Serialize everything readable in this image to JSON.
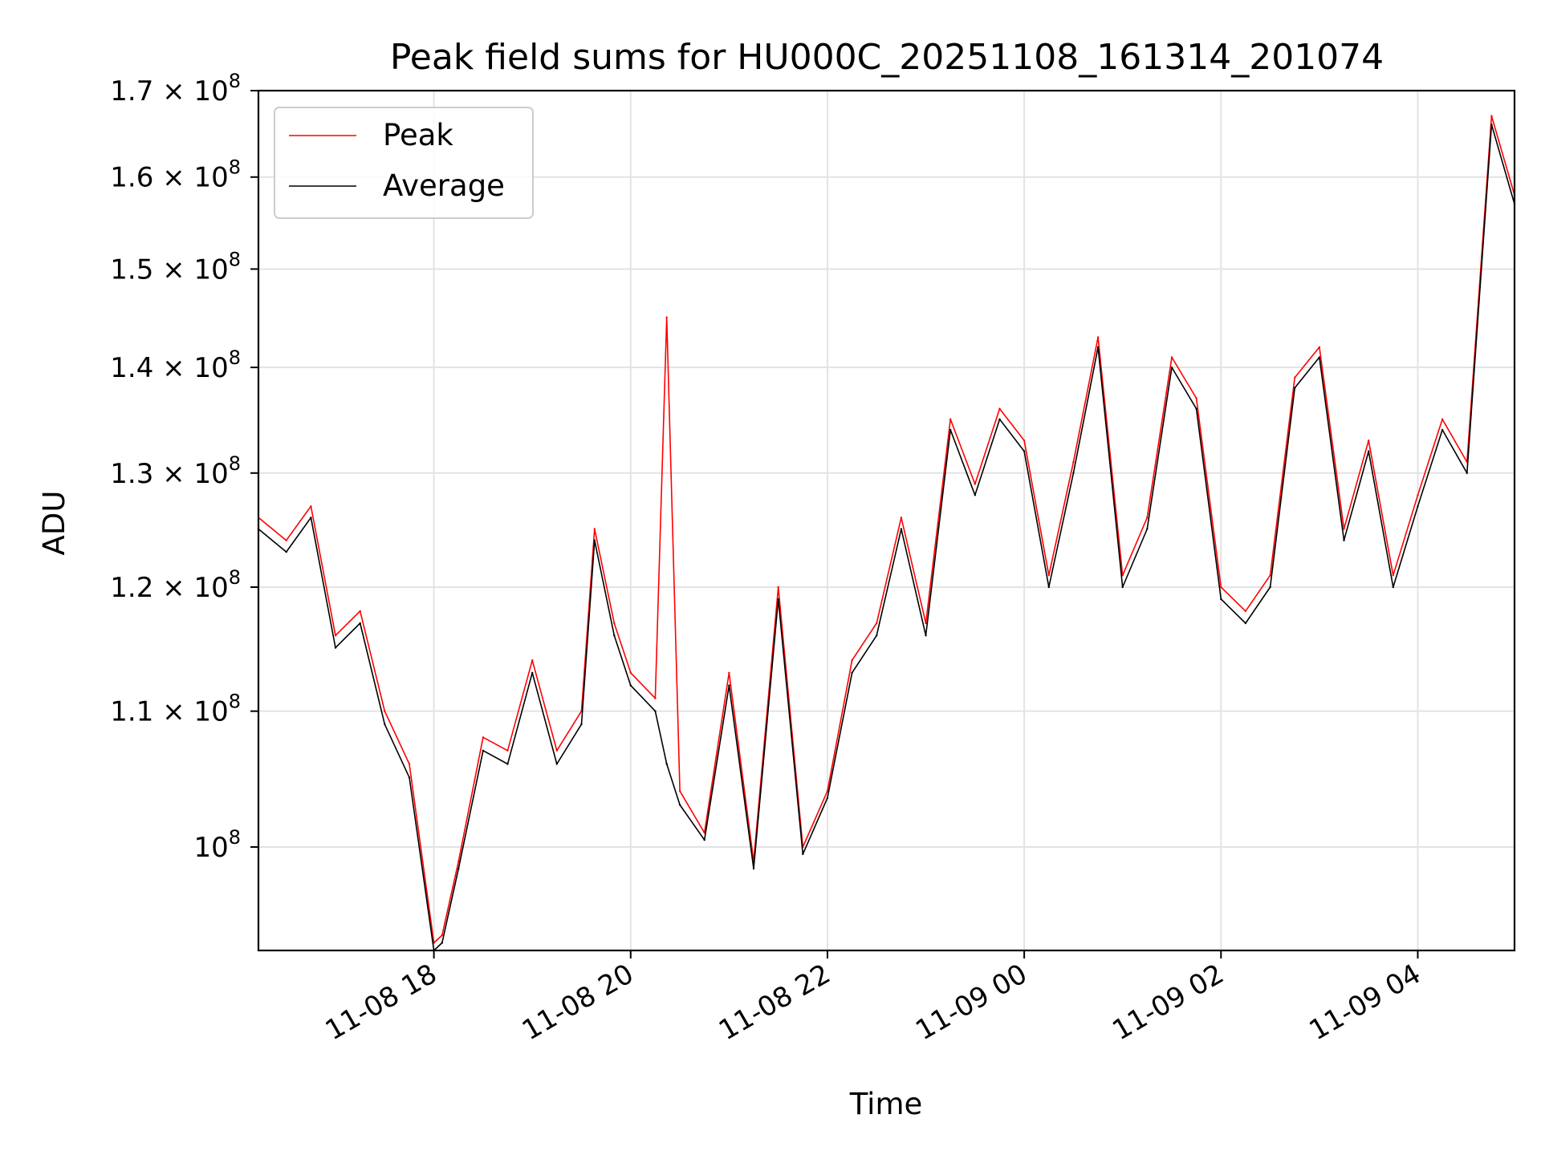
{
  "chart_data": {
    "type": "line",
    "title": "Peak field sums for HU000C_20251108_161314_201074",
    "xlabel": "Time",
    "ylabel": "ADU",
    "y_scale": "log",
    "grid": true,
    "legend_position": "top-left",
    "xlim": [
      "2025-11-08 16:13",
      "2025-11-09 04:59"
    ],
    "ylim": [
      93000000,
      170000000
    ],
    "x_tick_labels": [
      "11-08 18",
      "11-08 20",
      "11-08 22",
      "11-09 00",
      "11-09 02",
      "11-09 04"
    ],
    "x_ticks": [
      "2025-11-08 18:00",
      "2025-11-08 20:00",
      "2025-11-08 22:00",
      "2025-11-09 00:00",
      "2025-11-09 02:00",
      "2025-11-09 04:00"
    ],
    "y_ticks": [
      {
        "value": 100000000,
        "mantissa": "",
        "exponent": "8"
      },
      {
        "value": 110000000,
        "mantissa": "1.1",
        "exponent": "8"
      },
      {
        "value": 120000000,
        "mantissa": "1.2",
        "exponent": "8"
      },
      {
        "value": 130000000,
        "mantissa": "1.3",
        "exponent": "8"
      },
      {
        "value": 140000000,
        "mantissa": "1.4",
        "exponent": "8"
      },
      {
        "value": 150000000,
        "mantissa": "1.5",
        "exponent": "8"
      },
      {
        "value": 160000000,
        "mantissa": "1.6",
        "exponent": "8"
      },
      {
        "value": 170000000,
        "mantissa": "1.7",
        "exponent": "8"
      }
    ],
    "x": [
      "2025-11-08 16:13",
      "2025-11-08 16:30",
      "2025-11-08 16:45",
      "2025-11-08 17:00",
      "2025-11-08 17:15",
      "2025-11-08 17:30",
      "2025-11-08 17:45",
      "2025-11-08 18:00",
      "2025-11-08 18:05",
      "2025-11-08 18:15",
      "2025-11-08 18:30",
      "2025-11-08 18:45",
      "2025-11-08 19:00",
      "2025-11-08 19:15",
      "2025-11-08 19:30",
      "2025-11-08 19:38",
      "2025-11-08 19:50",
      "2025-11-08 20:00",
      "2025-11-08 20:15",
      "2025-11-08 20:22",
      "2025-11-08 20:30",
      "2025-11-08 20:45",
      "2025-11-08 21:00",
      "2025-11-08 21:15",
      "2025-11-08 21:30",
      "2025-11-08 21:45",
      "2025-11-08 22:00",
      "2025-11-08 22:15",
      "2025-11-08 22:30",
      "2025-11-08 22:45",
      "2025-11-08 23:00",
      "2025-11-08 23:15",
      "2025-11-08 23:30",
      "2025-11-08 23:45",
      "2025-11-09 00:00",
      "2025-11-09 00:15",
      "2025-11-09 00:30",
      "2025-11-09 00:45",
      "2025-11-09 01:00",
      "2025-11-09 01:15",
      "2025-11-09 01:30",
      "2025-11-09 01:45",
      "2025-11-09 02:00",
      "2025-11-09 02:15",
      "2025-11-09 02:30",
      "2025-11-09 02:45",
      "2025-11-09 03:00",
      "2025-11-09 03:15",
      "2025-11-09 03:30",
      "2025-11-09 03:45",
      "2025-11-09 04:00",
      "2025-11-09 04:15",
      "2025-11-09 04:30",
      "2025-11-09 04:45",
      "2025-11-09 04:59"
    ],
    "series": [
      {
        "name": "Peak",
        "color": "#ff0000",
        "values": [
          126000000,
          124000000,
          127000000,
          116000000,
          118000000,
          110000000,
          106000000,
          93500000,
          94000000,
          99000000,
          108000000,
          107000000,
          114000000,
          107000000,
          110000000,
          125000000,
          117000000,
          113000000,
          111000000,
          145000000,
          104000000,
          101000000,
          113000000,
          99000000,
          120000000,
          100000000,
          104000000,
          114000000,
          117000000,
          126000000,
          117000000,
          135000000,
          129000000,
          136000000,
          133000000,
          121000000,
          131000000,
          143000000,
          121000000,
          126000000,
          141000000,
          137000000,
          120000000,
          118000000,
          121000000,
          139000000,
          142000000,
          125000000,
          133000000,
          121000000,
          128000000,
          135000000,
          131000000,
          167000000,
          158000000
        ]
      },
      {
        "name": "Average",
        "color": "#000000",
        "values": [
          125000000,
          123000000,
          126000000,
          115000000,
          117000000,
          109000000,
          105000000,
          93000000,
          93500000,
          98500000,
          107000000,
          106000000,
          113000000,
          106000000,
          109000000,
          124000000,
          116000000,
          112000000,
          110000000,
          106000000,
          103000000,
          100500000,
          112000000,
          98500000,
          119000000,
          99500000,
          103500000,
          113000000,
          116000000,
          125000000,
          116000000,
          134000000,
          128000000,
          135000000,
          132000000,
          120000000,
          130000000,
          142000000,
          120000000,
          125000000,
          140000000,
          136000000,
          119000000,
          117000000,
          120000000,
          138000000,
          141000000,
          124000000,
          132000000,
          120000000,
          127000000,
          134000000,
          130000000,
          166000000,
          157000000
        ]
      }
    ]
  }
}
